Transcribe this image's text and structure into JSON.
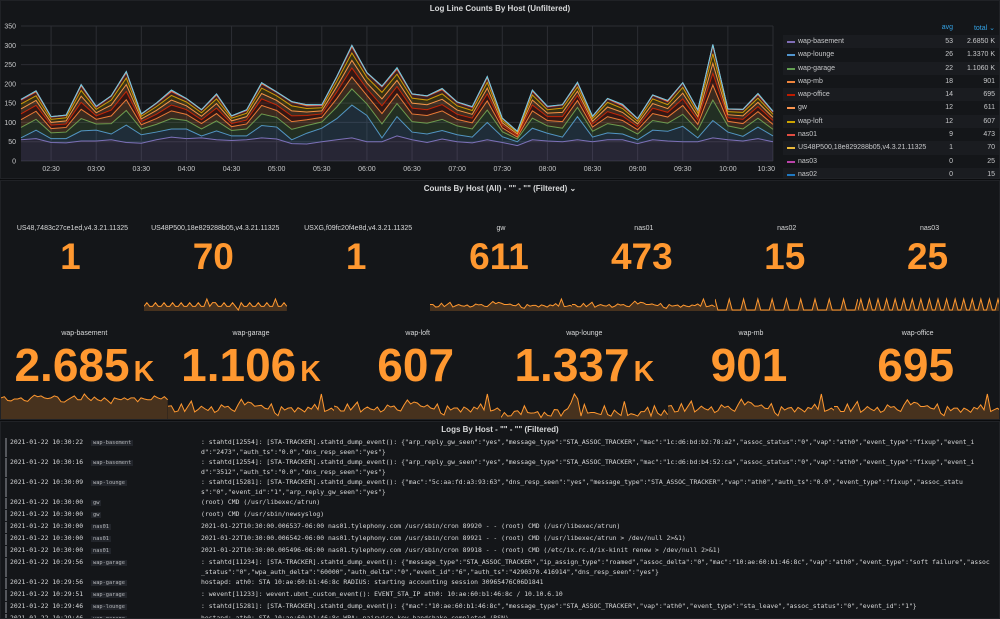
{
  "graph_panel": {
    "title": "Log Line Counts By Host (Unfiltered)",
    "legend_headers": {
      "avg": "avg",
      "total": "total ⌄"
    },
    "legend": [
      {
        "name": "wap-basement",
        "avg": "53",
        "total": "2.6850 K",
        "color": "#806eb7"
      },
      {
        "name": "wap-lounge",
        "avg": "26",
        "total": "1.3370 K",
        "color": "#5195ce"
      },
      {
        "name": "wap-garage",
        "avg": "22",
        "total": "1.1060 K",
        "color": "#629e51"
      },
      {
        "name": "wap-mb",
        "avg": "18",
        "total": "901",
        "color": "#ef843c"
      },
      {
        "name": "wap-office",
        "avg": "14",
        "total": "695",
        "color": "#bf1b00"
      },
      {
        "name": "gw",
        "avg": "12",
        "total": "611",
        "color": "#f9934e"
      },
      {
        "name": "wap-loft",
        "avg": "12",
        "total": "607",
        "color": "#cca300"
      },
      {
        "name": "nas01",
        "avg": "9",
        "total": "473",
        "color": "#e24d42"
      },
      {
        "name": "US48P500,18e829288b05,v4.3.21.11325",
        "avg": "1",
        "total": "70",
        "color": "#eab839"
      },
      {
        "name": "nas03",
        "avg": "0",
        "total": "25",
        "color": "#ba43a9"
      },
      {
        "name": "nas02",
        "avg": "0",
        "total": "15",
        "color": "#1f78c1"
      }
    ]
  },
  "chart_data": {
    "type": "area",
    "stacked": true,
    "grid": true,
    "legend_placement": "right",
    "ylim": [
      0,
      350
    ],
    "yticks": [
      0,
      50,
      100,
      150,
      200,
      250,
      300,
      350
    ],
    "xrange": [
      "02:10",
      "10:30"
    ],
    "xticks": [
      "02:30",
      "03:00",
      "03:30",
      "04:00",
      "04:30",
      "05:00",
      "05:30",
      "06:00",
      "06:30",
      "07:00",
      "07:30",
      "08:00",
      "08:30",
      "09:00",
      "09:30",
      "10:00",
      "10:30"
    ],
    "interval_minutes": 10,
    "series": [
      {
        "name": "wap-basement",
        "values": [
          55,
          58,
          48,
          47,
          52,
          52,
          55,
          48,
          46,
          55,
          62,
          58,
          60,
          55,
          53,
          55,
          60,
          57,
          45,
          44,
          50,
          55,
          60,
          50,
          50,
          65,
          55,
          48,
          57,
          50,
          47,
          55,
          48,
          40,
          55,
          52,
          50,
          55,
          50,
          55,
          55,
          45,
          55,
          52,
          50,
          50,
          60,
          55,
          52,
          58,
          50
        ]
      },
      {
        "name": "wap-lounge",
        "values": [
          5,
          22,
          10,
          11,
          26,
          28,
          15,
          45,
          22,
          20,
          21,
          25,
          5,
          23,
          12,
          10,
          32,
          31,
          10,
          28,
          35,
          55,
          85,
          68,
          10,
          50,
          20,
          22,
          22,
          18,
          15,
          45,
          15,
          10,
          30,
          20,
          12,
          60,
          12,
          18,
          15,
          10,
          25,
          25,
          40,
          10,
          45,
          20,
          12,
          30,
          15
        ]
      },
      {
        "name": "wap-garage",
        "values": [
          27,
          28,
          15,
          17,
          32,
          16,
          27,
          38,
          15,
          20,
          27,
          22,
          18,
          26,
          14,
          18,
          30,
          25,
          27,
          20,
          16,
          30,
          42,
          30,
          36,
          34,
          27,
          28,
          29,
          23,
          21,
          32,
          13,
          7,
          26,
          19,
          23,
          24,
          15,
          24,
          20,
          15,
          25,
          21,
          31,
          20,
          53,
          16,
          19,
          23,
          17
        ]
      },
      {
        "name": "wap-mb",
        "values": [
          20,
          21,
          11,
          12,
          24,
          12,
          20,
          28,
          11,
          15,
          20,
          16,
          14,
          19,
          10,
          13,
          22,
          18,
          20,
          15,
          12,
          22,
          31,
          22,
          27,
          25,
          20,
          20,
          22,
          17,
          16,
          24,
          10,
          5,
          19,
          14,
          17,
          18,
          11,
          18,
          15,
          11,
          18,
          16,
          23,
          15,
          39,
          12,
          14,
          17,
          13
        ]
      },
      {
        "name": "wap-office",
        "values": [
          15,
          15,
          9,
          9,
          18,
          9,
          15,
          21,
          8,
          11,
          15,
          12,
          10,
          14,
          8,
          10,
          17,
          14,
          15,
          11,
          9,
          17,
          23,
          17,
          20,
          19,
          15,
          15,
          16,
          13,
          12,
          18,
          7,
          4,
          15,
          10,
          13,
          13,
          8,
          13,
          11,
          8,
          14,
          12,
          17,
          11,
          30,
          9,
          11,
          13,
          10
        ]
      },
      {
        "name": "gw",
        "values": [
          13,
          13,
          7,
          8,
          16,
          8,
          13,
          18,
          7,
          10,
          13,
          10,
          9,
          12,
          7,
          9,
          14,
          12,
          13,
          9,
          8,
          14,
          20,
          15,
          18,
          16,
          13,
          13,
          14,
          11,
          10,
          15,
          6,
          4,
          13,
          9,
          11,
          11,
          7,
          12,
          10,
          7,
          12,
          10,
          15,
          9,
          26,
          8,
          9,
          11,
          8
        ]
      },
      {
        "name": "wap-loft",
        "values": [
          13,
          12,
          8,
          8,
          15,
          9,
          13,
          17,
          7,
          10,
          12,
          10,
          9,
          12,
          7,
          9,
          14,
          12,
          13,
          9,
          8,
          14,
          19,
          15,
          17,
          16,
          13,
          12,
          14,
          11,
          10,
          15,
          6,
          4,
          13,
          9,
          11,
          11,
          7,
          12,
          10,
          7,
          12,
          10,
          15,
          9,
          25,
          8,
          9,
          11,
          8
        ]
      },
      {
        "name": "nas01",
        "values": [
          10,
          10,
          6,
          6,
          12,
          6,
          10,
          14,
          5,
          8,
          10,
          8,
          7,
          10,
          5,
          7,
          11,
          9,
          10,
          7,
          6,
          11,
          16,
          11,
          14,
          13,
          10,
          10,
          11,
          9,
          8,
          12,
          5,
          3,
          10,
          7,
          8,
          9,
          5,
          9,
          7,
          6,
          9,
          8,
          11,
          7,
          20,
          6,
          7,
          9,
          6
        ]
      },
      {
        "name": "US48P500,18e829288b05,v4.3.21.11325",
        "values": [
          1,
          2,
          1,
          1,
          2,
          1,
          1,
          2,
          1,
          1,
          2,
          1,
          1,
          2,
          1,
          1,
          2,
          1,
          1,
          2,
          1,
          1,
          3,
          1,
          2,
          2,
          1,
          1,
          2,
          1,
          1,
          2,
          1,
          0,
          2,
          1,
          1,
          2,
          1,
          1,
          2,
          1,
          1,
          2,
          1,
          1,
          3,
          1,
          1,
          2,
          1
        ]
      },
      {
        "name": "nas03",
        "values": [
          0,
          1,
          0,
          0,
          1,
          0,
          0,
          1,
          0,
          0,
          1,
          0,
          0,
          1,
          0,
          0,
          1,
          0,
          0,
          1,
          0,
          0,
          1,
          0,
          0,
          1,
          0,
          0,
          1,
          0,
          0,
          1,
          0,
          0,
          1,
          0,
          0,
          1,
          0,
          0,
          1,
          0,
          0,
          1,
          0,
          0,
          1,
          0,
          0,
          1,
          0
        ]
      },
      {
        "name": "nas02",
        "values": [
          1,
          0,
          0,
          0,
          0,
          1,
          0,
          0,
          0,
          0,
          1,
          0,
          0,
          0,
          0,
          1,
          0,
          0,
          0,
          0,
          1,
          0,
          0,
          0,
          0,
          1,
          0,
          0,
          0,
          0,
          1,
          0,
          0,
          0,
          0,
          1,
          0,
          0,
          0,
          0,
          1,
          0,
          0,
          0,
          0,
          1,
          0,
          0,
          0,
          0,
          1
        ]
      }
    ]
  },
  "stats_panel": {
    "title": "Counts By Host (All) - \"\" - \"\" (Filtered) ⌄",
    "value_color": "#ff9830",
    "row1": [
      {
        "label": "US48,7483c27ce1ed,v4.3.21.11325",
        "value": "1",
        "unit": ""
      },
      {
        "label": "US48P500,18e829288b05,v4.3.21.11325",
        "value": "70",
        "unit": ""
      },
      {
        "label": "USXG,f09fc20f4e8d,v4.3.21.11325",
        "value": "1",
        "unit": ""
      },
      {
        "label": "gw",
        "value": "611",
        "unit": ""
      },
      {
        "label": "nas01",
        "value": "473",
        "unit": ""
      },
      {
        "label": "nas02",
        "value": "15",
        "unit": ""
      },
      {
        "label": "nas03",
        "value": "25",
        "unit": ""
      }
    ],
    "row2": [
      {
        "label": "wap-basement",
        "value": "2.685",
        "unit": "K"
      },
      {
        "label": "wap-garage",
        "value": "1.106",
        "unit": "K"
      },
      {
        "label": "wap-loft",
        "value": "607",
        "unit": ""
      },
      {
        "label": "wap-lounge",
        "value": "1.337",
        "unit": "K"
      },
      {
        "label": "wap-mb",
        "value": "901",
        "unit": ""
      },
      {
        "label": "wap-office",
        "value": "695",
        "unit": ""
      }
    ]
  },
  "logs_panel": {
    "title": "Logs By Host - \"\" - \"\" (Filtered)",
    "rows": [
      {
        "ts": "2021-01-22 10:30:22",
        "host": "wap-basement",
        "msg": ": stahtd[12554]: [STA-TRACKER].stahtd_dump_event(): {\"arp_reply_gw_seen\":\"yes\",\"message_type\":\"STA_ASSOC_TRACKER\",\"mac\":\"1c:d6:bd:b2:78:a2\",\"assoc_status\":\"0\",\"vap\":\"ath0\",\"event_type\":\"fixup\",\"event_id\":\"2473\",\"auth_ts\":\"0.0\",\"dns_resp_seen\":\"yes\"}"
      },
      {
        "ts": "2021-01-22 10:30:16",
        "host": "wap-basement",
        "msg": ": stahtd[12554]: [STA-TRACKER].stahtd_dump_event(): {\"arp_reply_gw_seen\":\"yes\",\"message_type\":\"STA_ASSOC_TRACKER\",\"mac\":\"1c:d6:bd:b4:52:ca\",\"assoc_status\":\"0\",\"vap\":\"ath0\",\"event_type\":\"fixup\",\"event_id\":\"3512\",\"auth_ts\":\"0.0\",\"dns_resp_seen\":\"yes\"}"
      },
      {
        "ts": "2021-01-22 10:30:09",
        "host": "wap-lounge",
        "msg": ": stahtd[15281]: [STA-TRACKER].stahtd_dump_event(): {\"mac\":\"5c:aa:fd:a3:93:63\",\"dns_resp_seen\":\"yes\",\"message_type\":\"STA_ASSOC_TRACKER\",\"vap\":\"ath0\",\"auth_ts\":\"0.0\",\"event_type\":\"fixup\",\"assoc_status\":\"0\",\"event_id\":\"1\",\"arp_reply_gw_seen\":\"yes\"}"
      },
      {
        "ts": "2021-01-22 10:30:00",
        "host": "gw",
        "msg": "(root) CMD (/usr/libexec/atrun)"
      },
      {
        "ts": "2021-01-22 10:30:00",
        "host": "gw",
        "msg": "(root) CMD (/usr/sbin/newsyslog)"
      },
      {
        "ts": "2021-01-22 10:30:00",
        "host": "nas01",
        "msg": "2021-01-22T10:30:00.006537-06:00 nas01.tylephony.com /usr/sbin/cron 89920 - - (root) CMD (/usr/libexec/atrun)"
      },
      {
        "ts": "2021-01-22 10:30:00",
        "host": "nas01",
        "msg": "2021-01-22T10:30:00.006542-06:00 nas01.tylephony.com /usr/sbin/cron 89921 - - (root) CMD (/usr/libexec/atrun > /dev/null 2>&1)"
      },
      {
        "ts": "2021-01-22 10:30:00",
        "host": "nas01",
        "msg": "2021-01-22T10:30:00.005496-06:00 nas01.tylephony.com /usr/sbin/cron 89918 - - (root) CMD (/etc/ix.rc.d/ix-kinit renew > /dev/null 2>&1)"
      },
      {
        "ts": "2021-01-22 10:29:56",
        "host": "wap-garage",
        "msg": ": stahtd[11234]: [STA-TRACKER].stahtd_dump_event(): {\"message_type\":\"STA_ASSOC_TRACKER\",\"ip_assign_type\":\"roamed\",\"assoc_delta\":\"0\",\"mac\":\"10:ae:60:b1:46:8c\",\"vap\":\"ath0\",\"event_type\":\"soft failure\",\"assoc_status\":\"0\",\"wpa_auth_delta\":\"60000\",\"auth_delta\":\"0\",\"event_id\":\"6\",\"auth_ts\":\"4290370.416914\",\"dns_resp_seen\":\"yes\"}"
      },
      {
        "ts": "2021-01-22 10:29:56",
        "host": "wap-garage",
        "msg": "hostapd: ath0: STA 10:ae:60:b1:46:8c RADIUS: starting accounting session 30965476C06D1841"
      },
      {
        "ts": "2021-01-22 10:29:51",
        "host": "wap-garage",
        "msg": ": wevent[11233]: wevent.ubnt_custom_event(): EVENT_STA_IP ath0: 10:ae:60:b1:46:8c / 10.10.6.10"
      },
      {
        "ts": "2021-01-22 10:29:46",
        "host": "wap-lounge",
        "msg": ": stahtd[15281]: [STA-TRACKER].stahtd_dump_event(): {\"mac\":\"10:ae:60:b1:46:8c\",\"message_type\":\"STA_ASSOC_TRACKER\",\"vap\":\"ath0\",\"event_type\":\"sta_leave\",\"assoc_status\":\"0\",\"event_id\":\"1\"}"
      },
      {
        "ts": "2021-01-22 10:29:46",
        "host": "wap-garage",
        "msg": "hostapd: ath0: STA 10:ae:60:b1:46:8c WPA: pairwise key handshake completed (RSN)"
      }
    ]
  }
}
